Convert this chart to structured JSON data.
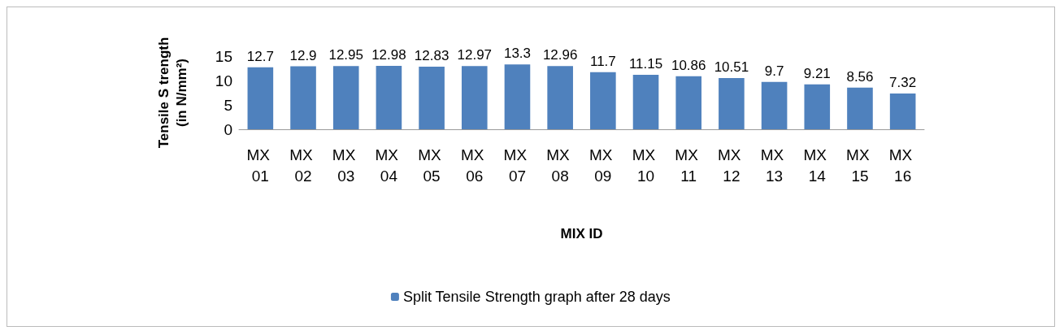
{
  "chart_data": {
    "type": "bar",
    "xlabel": "MIX ID",
    "ylabel": "Tensile S trength\n(in N/mm²)",
    "categories": [
      "MX 01",
      "MX 02",
      "MX 03",
      "MX 04",
      "MX 05",
      "MX 06",
      "MX 07",
      "MX 08",
      "MX 09",
      "MX 10",
      "MX 11",
      "MX 12",
      "MX 13",
      "MX 14",
      "MX 15",
      "MX 16"
    ],
    "series": [
      {
        "name": "Split Tensile Strength graph after 28 days",
        "color": "#4f81bd",
        "values": [
          12.7,
          12.9,
          12.95,
          12.98,
          12.83,
          12.97,
          13.3,
          12.96,
          11.7,
          11.15,
          10.86,
          10.51,
          9.7,
          9.21,
          8.56,
          7.32
        ]
      }
    ],
    "ylim": [
      0,
      15
    ],
    "yticks": [
      0,
      5,
      10,
      15
    ],
    "grid": false,
    "legend": "bottom",
    "data_labels": true
  }
}
